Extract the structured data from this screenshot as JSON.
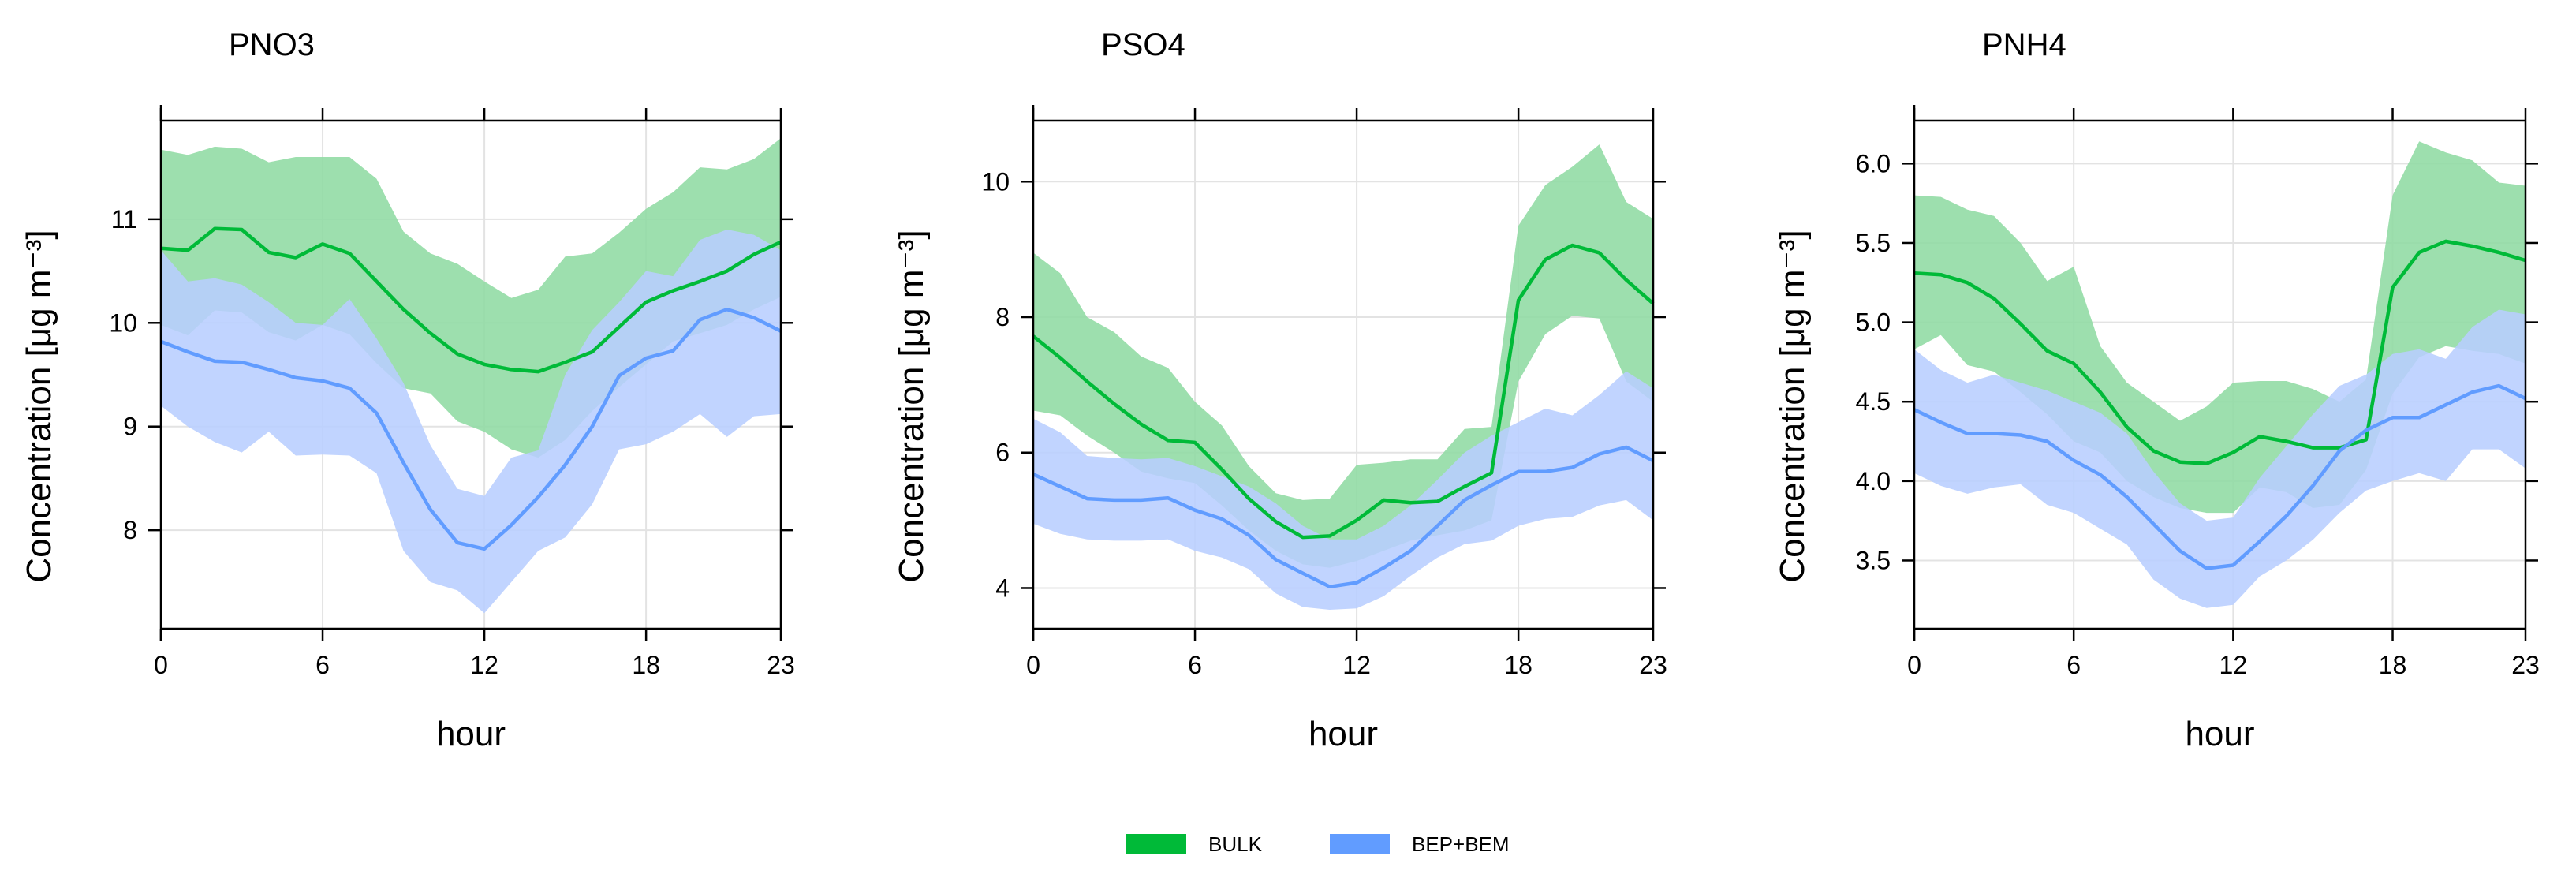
{
  "chart_data": [
    {
      "type": "area",
      "title": "PNO3",
      "xlabel": "hour",
      "ylabel": "Concentration [μg m⁻³]",
      "xlim": [
        0,
        23
      ],
      "ylim": [
        7.05,
        11.95
      ],
      "x_ticks": [
        0,
        6,
        12,
        18,
        23
      ],
      "x_tick_labels": [
        "0",
        "6",
        "12",
        "18",
        "23"
      ],
      "y_ticks": [
        8,
        9,
        10,
        11
      ],
      "y_tick_labels": [
        "8",
        "9",
        "10",
        "11"
      ],
      "grid": true,
      "x": [
        0,
        1,
        2,
        3,
        4,
        5,
        6,
        7,
        8,
        9,
        10,
        11,
        12,
        13,
        14,
        15,
        16,
        17,
        18,
        19,
        20,
        21,
        22,
        23
      ],
      "series": [
        {
          "name": "BULK",
          "color": "#00BA38",
          "fill": "#8FDBA3",
          "mean": [
            10.72,
            10.7,
            10.91,
            10.9,
            10.68,
            10.63,
            10.76,
            10.67,
            10.4,
            10.13,
            9.9,
            9.7,
            9.6,
            9.55,
            9.53,
            9.62,
            9.72,
            9.96,
            10.2,
            10.31,
            10.4,
            10.5,
            10.66,
            10.78
          ],
          "upper": [
            11.67,
            11.62,
            11.7,
            11.68,
            11.55,
            11.6,
            11.6,
            11.6,
            11.39,
            10.88,
            10.67,
            10.57,
            10.4,
            10.24,
            10.32,
            10.64,
            10.67,
            10.87,
            11.1,
            11.26,
            11.5,
            11.48,
            11.58,
            11.78
          ],
          "lower": [
            9.98,
            9.88,
            10.12,
            10.1,
            9.91,
            9.83,
            9.98,
            9.89,
            9.61,
            9.37,
            9.32,
            9.05,
            8.95,
            8.78,
            8.7,
            8.87,
            9.15,
            9.38,
            9.6,
            9.82,
            9.9,
            9.98,
            10.13,
            10.25
          ]
        },
        {
          "name": "BEP+BEM",
          "color": "#619CFF",
          "fill": "#B8CEFF",
          "mean": [
            9.82,
            9.72,
            9.63,
            9.62,
            9.55,
            9.47,
            9.44,
            9.37,
            9.13,
            8.65,
            8.2,
            7.88,
            7.82,
            8.05,
            8.32,
            8.63,
            9.0,
            9.49,
            9.66,
            9.73,
            10.03,
            10.13,
            10.05,
            9.92
          ],
          "upper": [
            10.7,
            10.4,
            10.43,
            10.37,
            10.2,
            10.0,
            9.98,
            10.23,
            9.85,
            9.42,
            8.82,
            8.4,
            8.33,
            8.7,
            8.77,
            9.5,
            9.93,
            10.2,
            10.5,
            10.45,
            10.8,
            10.9,
            10.85,
            10.7
          ],
          "lower": [
            9.2,
            9.0,
            8.85,
            8.75,
            8.95,
            8.72,
            8.73,
            8.72,
            8.55,
            7.8,
            7.5,
            7.42,
            7.2,
            7.5,
            7.8,
            7.93,
            8.25,
            8.78,
            8.83,
            8.95,
            9.12,
            8.9,
            9.1,
            9.12
          ]
        }
      ]
    },
    {
      "type": "area",
      "title": "PSO4",
      "xlabel": "hour",
      "ylabel": "Concentration [μg m⁻³]",
      "xlim": [
        0,
        23
      ],
      "ylim": [
        3.4,
        10.9
      ],
      "x_ticks": [
        0,
        6,
        12,
        18,
        23
      ],
      "x_tick_labels": [
        "0",
        "6",
        "12",
        "18",
        "23"
      ],
      "y_ticks": [
        4,
        6,
        8,
        10
      ],
      "y_tick_labels": [
        "4",
        "6",
        "8",
        "10"
      ],
      "grid": true,
      "x": [
        0,
        1,
        2,
        3,
        4,
        5,
        6,
        7,
        8,
        9,
        10,
        11,
        12,
        13,
        14,
        15,
        16,
        17,
        18,
        19,
        20,
        21,
        22,
        23
      ],
      "series": [
        {
          "name": "BULK",
          "color": "#00BA38",
          "fill": "#8FDBA3",
          "mean": [
            7.72,
            7.4,
            7.05,
            6.72,
            6.42,
            6.18,
            6.15,
            5.75,
            5.32,
            4.98,
            4.75,
            4.77,
            5.0,
            5.3,
            5.26,
            5.28,
            5.5,
            5.7,
            8.25,
            8.85,
            9.06,
            8.95,
            8.55,
            8.2
          ],
          "upper": [
            8.95,
            8.65,
            8.0,
            7.78,
            7.42,
            7.25,
            6.75,
            6.4,
            5.8,
            5.4,
            5.3,
            5.32,
            5.82,
            5.85,
            5.9,
            5.9,
            6.35,
            6.38,
            9.35,
            9.95,
            10.22,
            10.55,
            9.7,
            9.45
          ],
          "lower": [
            6.62,
            6.55,
            6.25,
            6.0,
            5.72,
            5.62,
            5.55,
            5.22,
            4.85,
            4.55,
            4.35,
            4.3,
            4.4,
            4.55,
            4.7,
            4.78,
            4.85,
            5.0,
            7.05,
            7.75,
            8.02,
            7.98,
            7.05,
            6.75
          ]
        },
        {
          "name": "BEP+BEM",
          "color": "#619CFF",
          "fill": "#B8CEFF",
          "mean": [
            5.68,
            5.5,
            5.32,
            5.3,
            5.3,
            5.33,
            5.15,
            5.02,
            4.78,
            4.42,
            4.22,
            4.02,
            4.08,
            4.3,
            4.55,
            4.92,
            5.3,
            5.52,
            5.72,
            5.72,
            5.78,
            5.98,
            6.08,
            5.88
          ],
          "upper": [
            6.5,
            6.3,
            5.95,
            5.92,
            5.9,
            5.92,
            5.8,
            5.65,
            5.5,
            5.25,
            4.92,
            4.72,
            4.72,
            4.92,
            5.22,
            5.6,
            6.0,
            6.25,
            6.45,
            6.65,
            6.55,
            6.85,
            7.2,
            6.95
          ],
          "lower": [
            4.95,
            4.8,
            4.72,
            4.7,
            4.7,
            4.72,
            4.55,
            4.45,
            4.28,
            3.92,
            3.72,
            3.68,
            3.7,
            3.88,
            4.18,
            4.45,
            4.65,
            4.7,
            4.92,
            5.02,
            5.05,
            5.22,
            5.3,
            5.0
          ]
        }
      ]
    },
    {
      "type": "area",
      "title": "PNH4",
      "xlabel": "hour",
      "ylabel": "Concentration [μg m⁻³]",
      "xlim": [
        0,
        23
      ],
      "ylim": [
        3.07,
        6.27
      ],
      "x_ticks": [
        0,
        6,
        12,
        18,
        23
      ],
      "x_tick_labels": [
        "0",
        "6",
        "12",
        "18",
        "23"
      ],
      "y_ticks": [
        3.5,
        4.0,
        4.5,
        5.0,
        5.5,
        6.0
      ],
      "y_tick_labels": [
        "3.5",
        "4.0",
        "4.5",
        "5.0",
        "5.5",
        "6.0"
      ],
      "grid": true,
      "x": [
        0,
        1,
        2,
        3,
        4,
        5,
        6,
        7,
        8,
        9,
        10,
        11,
        12,
        13,
        14,
        15,
        16,
        17,
        18,
        19,
        20,
        21,
        22,
        23
      ],
      "series": [
        {
          "name": "BULK",
          "color": "#00BA38",
          "fill": "#8FDBA3",
          "mean": [
            5.31,
            5.3,
            5.25,
            5.15,
            4.99,
            4.82,
            4.74,
            4.56,
            4.34,
            4.19,
            4.12,
            4.11,
            4.18,
            4.28,
            4.25,
            4.21,
            4.21,
            4.26,
            5.22,
            5.44,
            5.51,
            5.48,
            5.44,
            5.39
          ],
          "upper": [
            5.8,
            5.79,
            5.71,
            5.67,
            5.5,
            5.26,
            5.35,
            4.85,
            4.62,
            4.5,
            4.38,
            4.47,
            4.62,
            4.63,
            4.63,
            4.58,
            4.5,
            4.64,
            5.8,
            6.14,
            6.07,
            6.02,
            5.88,
            5.86
          ],
          "lower": [
            4.83,
            4.92,
            4.73,
            4.69,
            4.56,
            4.42,
            4.25,
            4.18,
            4.0,
            3.9,
            3.83,
            3.8,
            3.8,
            3.96,
            3.93,
            3.83,
            3.85,
            4.07,
            4.55,
            4.78,
            4.85,
            4.82,
            4.8,
            4.74
          ]
        },
        {
          "name": "BEP+BEM",
          "color": "#619CFF",
          "fill": "#B8CEFF",
          "mean": [
            4.45,
            4.37,
            4.3,
            4.3,
            4.29,
            4.25,
            4.13,
            4.04,
            3.9,
            3.73,
            3.56,
            3.45,
            3.47,
            3.62,
            3.78,
            3.97,
            4.19,
            4.32,
            4.4,
            4.4,
            4.48,
            4.56,
            4.6,
            4.52
          ],
          "upper": [
            4.83,
            4.7,
            4.62,
            4.67,
            4.62,
            4.57,
            4.5,
            4.43,
            4.3,
            4.06,
            3.86,
            3.75,
            3.77,
            4.02,
            4.22,
            4.42,
            4.6,
            4.67,
            4.8,
            4.83,
            4.77,
            4.97,
            5.08,
            5.05
          ],
          "lower": [
            4.05,
            3.97,
            3.92,
            3.96,
            3.98,
            3.85,
            3.8,
            3.7,
            3.6,
            3.38,
            3.26,
            3.2,
            3.22,
            3.4,
            3.5,
            3.63,
            3.8,
            3.94,
            4.0,
            4.05,
            4.0,
            4.2,
            4.2,
            4.08
          ]
        }
      ]
    }
  ],
  "legend": {
    "position": "bottom",
    "entries": [
      {
        "label": "BULK",
        "color": "#00BA38"
      },
      {
        "label": "BEP+BEM",
        "color": "#619CFF"
      }
    ]
  }
}
